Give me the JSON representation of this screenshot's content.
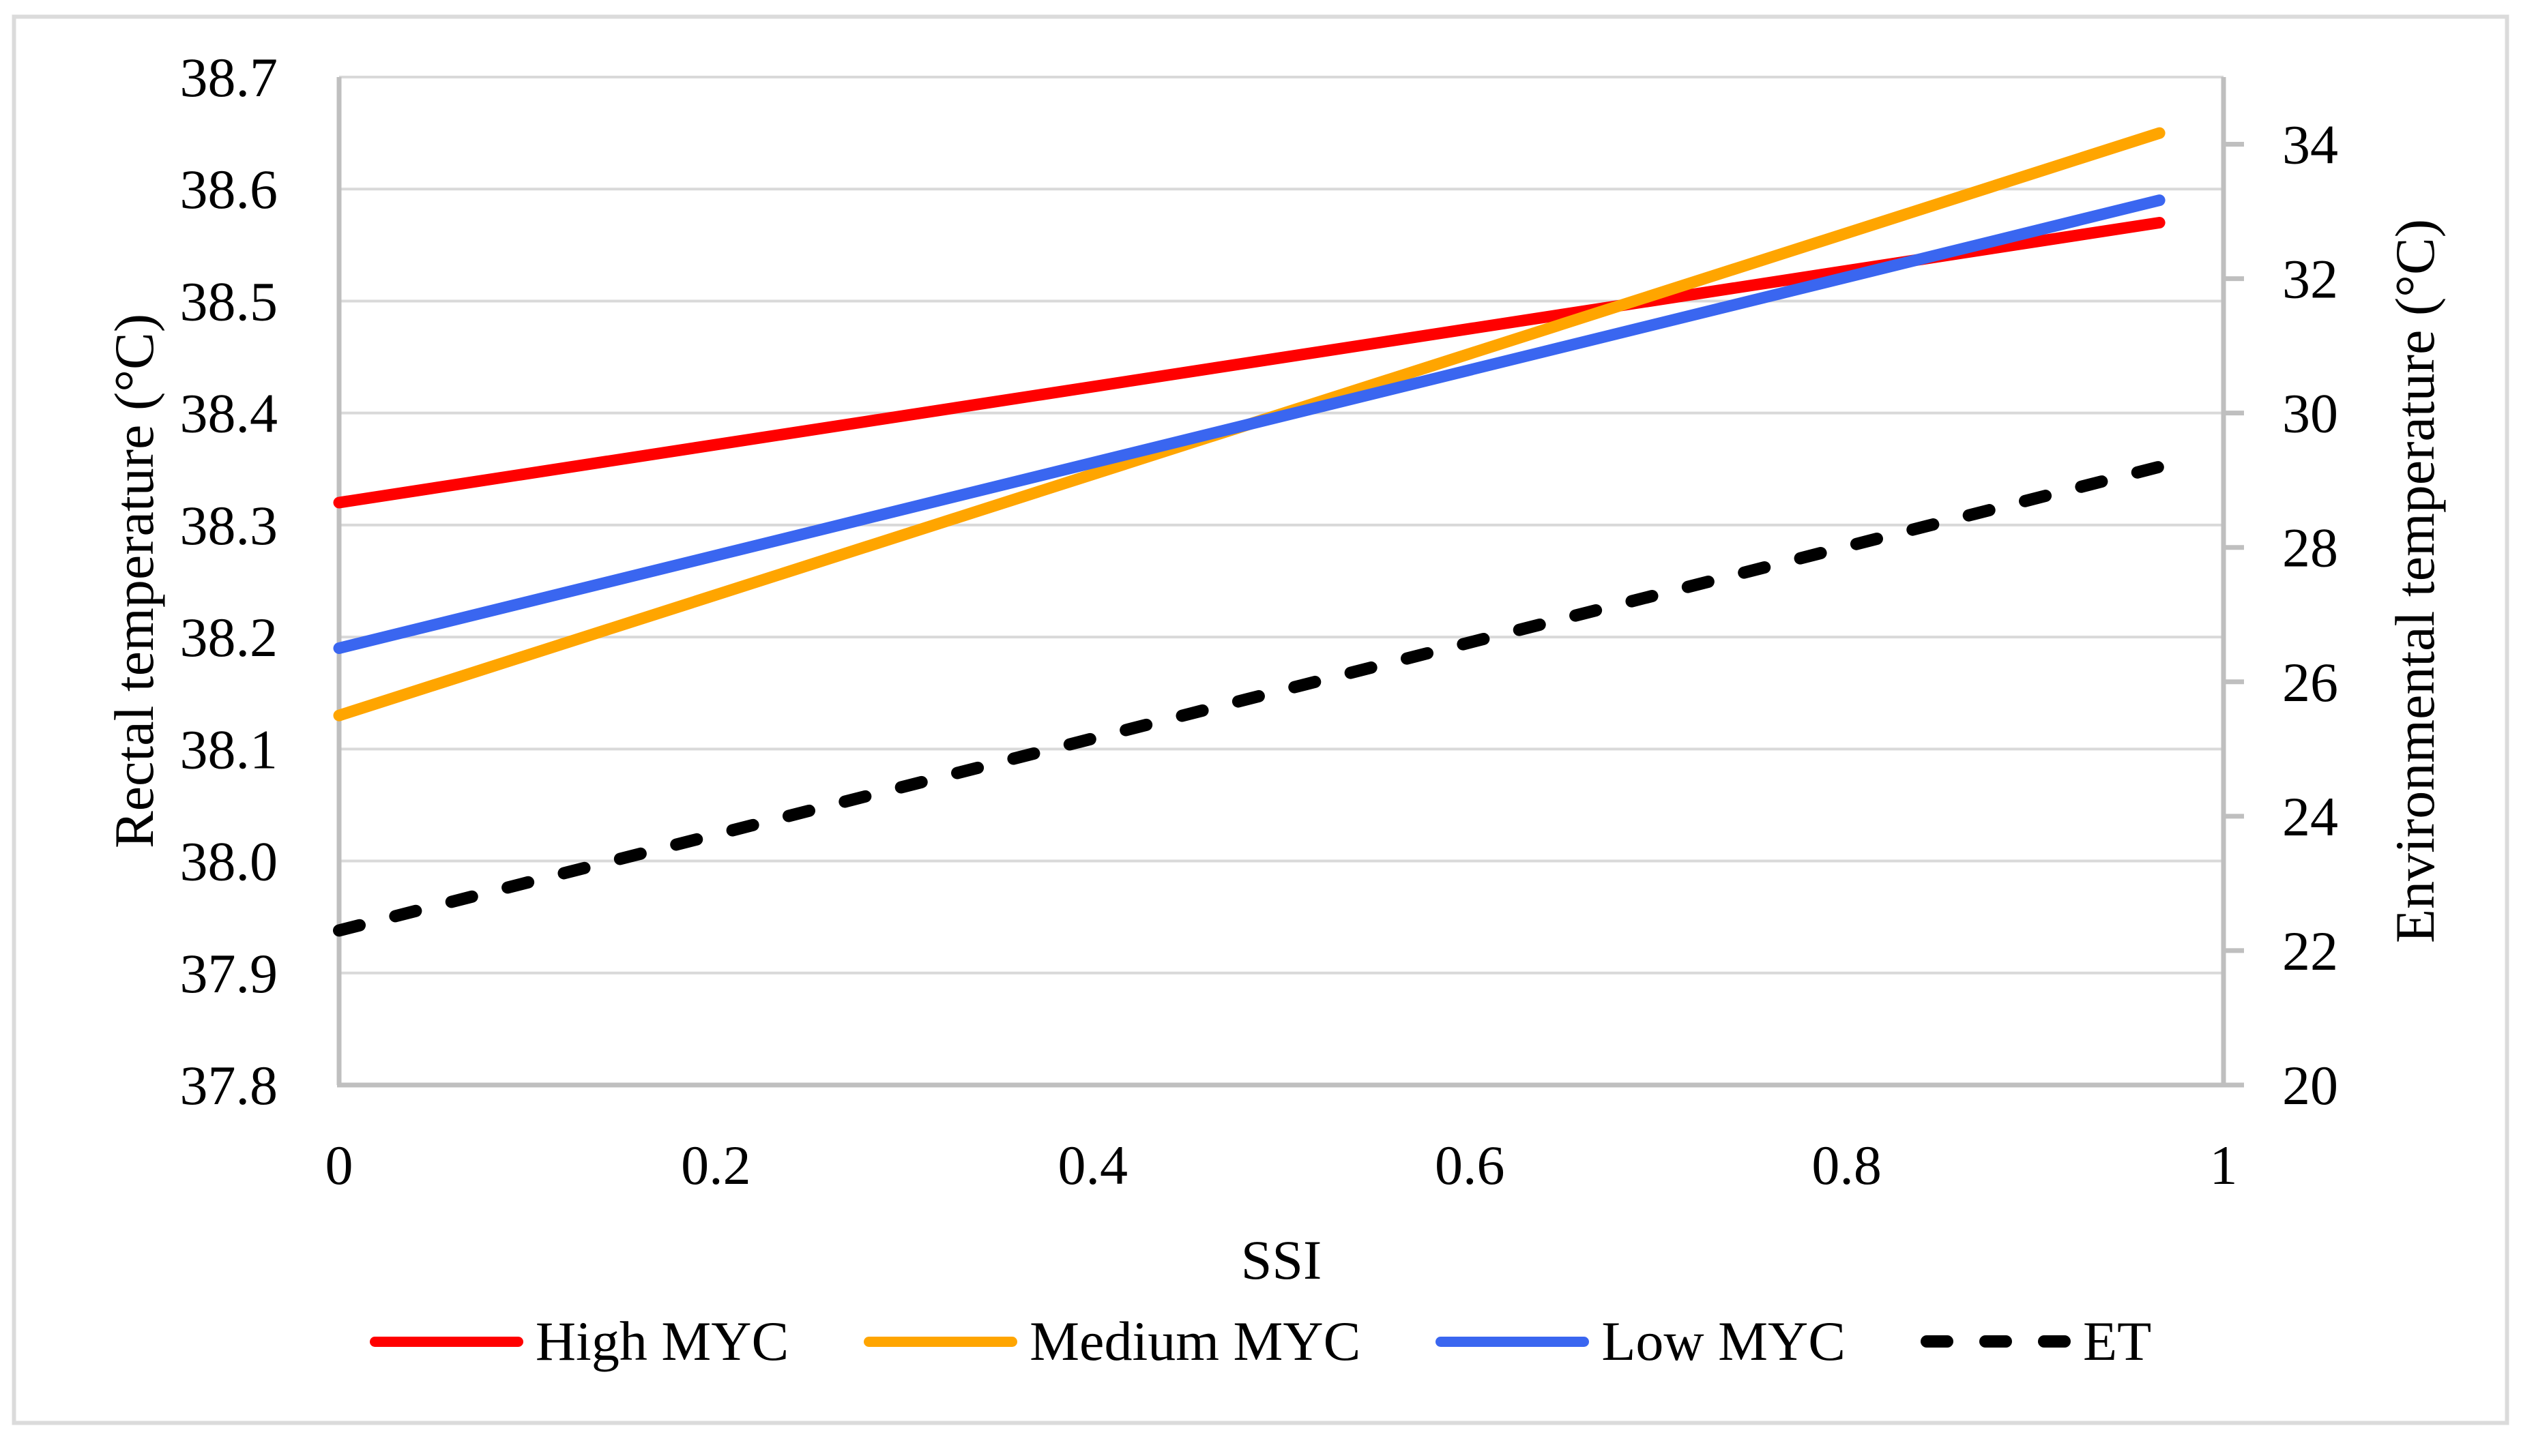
{
  "figure": {
    "background_color": "#FFFFFF",
    "border_color": "#DBDBDB"
  },
  "chart_data": {
    "type": "line",
    "title": "",
    "x_axis": {
      "title": "SSI",
      "min": 0,
      "max": 1,
      "tick_values": [
        0,
        0.2,
        0.4,
        0.6,
        0.8,
        1
      ],
      "tick_labels": [
        "0",
        "0.2",
        "0.4",
        "0.6",
        "0.8",
        "1"
      ]
    },
    "y_axis_left": {
      "title": "Rectal temperature (°C)",
      "min": 37.8,
      "max": 38.7,
      "major_step": 0.1,
      "tick_values": [
        38.7,
        38.6,
        38.5,
        38.4,
        38.3,
        38.2,
        38.1,
        38.0,
        37.9,
        37.8
      ],
      "tick_labels": [
        "38.7",
        "38.6",
        "38.5",
        "38.4",
        "38.3",
        "38.2",
        "38.1",
        "38.0",
        "37.9",
        "37.8"
      ],
      "gridlines": true
    },
    "y_axis_right": {
      "title": "Environmental temperature (°C)",
      "min": 20,
      "max": 35,
      "major_step": 2,
      "tick_values": [
        34,
        32,
        30,
        28,
        26,
        24,
        22,
        20
      ],
      "tick_labels": [
        "34",
        "32",
        "30",
        "28",
        "26",
        "24",
        "22",
        "20"
      ],
      "gridlines": false
    },
    "series": [
      {
        "name": "High MYC",
        "color": "#FF0000",
        "style": "solid",
        "y_axis": "left",
        "points": [
          {
            "x": 0,
            "y": 38.32
          },
          {
            "x": 0.966,
            "y": 38.57
          }
        ]
      },
      {
        "name": "Medium MYC",
        "color": "#FFA500",
        "style": "solid",
        "y_axis": "left",
        "points": [
          {
            "x": 0,
            "y": 38.13
          },
          {
            "x": 0.966,
            "y": 38.65
          }
        ]
      },
      {
        "name": "Low MYC",
        "color": "#3A66F0",
        "style": "solid",
        "y_axis": "left",
        "points": [
          {
            "x": 0,
            "y": 38.19
          },
          {
            "x": 0.966,
            "y": 38.59
          }
        ]
      },
      {
        "name": "ET",
        "color": "#000000",
        "style": "dashed",
        "y_axis": "right",
        "points": [
          {
            "x": 0,
            "y": 22.3
          },
          {
            "x": 0.966,
            "y": 29.2
          }
        ]
      }
    ],
    "grid_color": "#D9D9D9",
    "axis_color": "#BFBFBF",
    "legend_position": "bottom",
    "legend_entries": [
      "High MYC",
      "Medium MYC",
      "Low MYC",
      "ET"
    ]
  }
}
